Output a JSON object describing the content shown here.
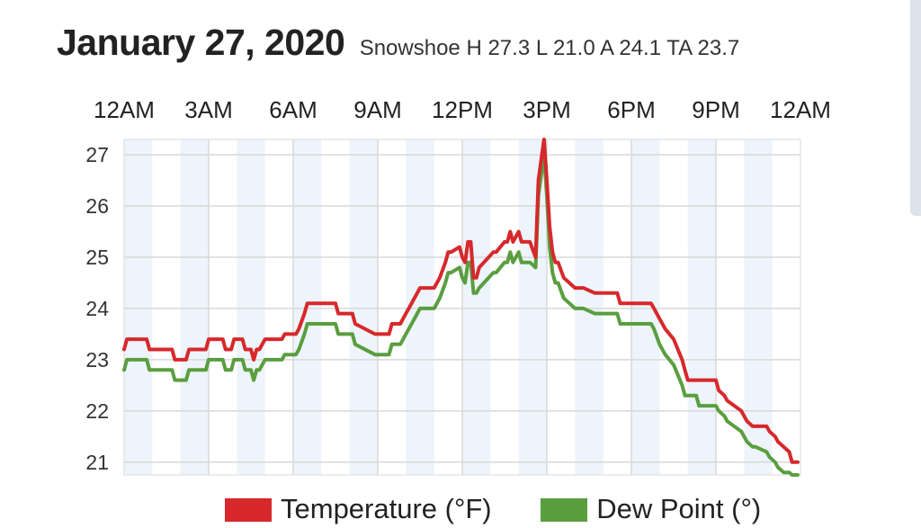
{
  "header": {
    "title": "January 27, 2020",
    "subtitle": "Snowshoe H 27.3 L 21.0 A 24.1 TA 23.7"
  },
  "legend": {
    "temperature_label": "Temperature (°F)",
    "dewpoint_label": "Dew Point (°)"
  },
  "chart_data": {
    "type": "line",
    "title": "January 27, 2020",
    "x_tick_labels": [
      "12AM",
      "3AM",
      "6AM",
      "9AM",
      "12PM",
      "3PM",
      "6PM",
      "9PM",
      "12AM"
    ],
    "y_tick_labels": [
      "27",
      "26",
      "25",
      "24",
      "23",
      "22",
      "21"
    ],
    "x_range_hours": [
      0,
      24
    ],
    "ylim": [
      20.75,
      27.3
    ],
    "grid": true,
    "legend_placement": "bottom",
    "colors": {
      "temperature": "#d7282c",
      "dew_point": "#5a9e3f",
      "band": "#edf4fb",
      "grid": "#d8d8d8"
    },
    "series": [
      {
        "name": "Temperature (°F)",
        "x": [
          0,
          0.1,
          0.4,
          0.8,
          0.9,
          1.7,
          1.8,
          2.2,
          2.3,
          2.9,
          3.0,
          3.5,
          3.6,
          3.8,
          3.9,
          4.2,
          4.3,
          4.5,
          4.6,
          4.7,
          4.8,
          5.0,
          5.1,
          5.6,
          5.7,
          6.1,
          6.2,
          6.4,
          6.5,
          7.5,
          7.6,
          8.1,
          8.2,
          8.9,
          9.0,
          9.4,
          9.5,
          9.8,
          10.0,
          10.1,
          10.4,
          10.5,
          10.8,
          11.0,
          11.2,
          11.4,
          11.5,
          11.6,
          11.9,
          12.0,
          12.1,
          12.2,
          12.3,
          12.4,
          12.5,
          12.6,
          13.1,
          13.2,
          13.5,
          13.6,
          13.7,
          13.8,
          14.0,
          14.1,
          14.4,
          14.6,
          14.7,
          14.8,
          14.9,
          15.0,
          15.1,
          15.2,
          15.3,
          15.4,
          15.6,
          15.8,
          16.0,
          16.1,
          16.3,
          16.7,
          16.8,
          17.5,
          17.6,
          18.7,
          18.8,
          19.0,
          19.2,
          19.5,
          19.8,
          19.9,
          20.0,
          20.1,
          20.2,
          20.3,
          20.4,
          20.5,
          20.6,
          21.0,
          21.1,
          21.3,
          21.4,
          21.9,
          22.0,
          22.1,
          22.3,
          22.4,
          22.8,
          22.9,
          23.1,
          23.2,
          23.4,
          23.6,
          23.7,
          23.9
        ],
        "values": [
          23.2,
          23.4,
          23.4,
          23.4,
          23.2,
          23.2,
          23.0,
          23.0,
          23.2,
          23.2,
          23.4,
          23.4,
          23.2,
          23.2,
          23.4,
          23.4,
          23.2,
          23.2,
          23.0,
          23.2,
          23.2,
          23.4,
          23.4,
          23.4,
          23.5,
          23.5,
          23.6,
          23.9,
          24.1,
          24.1,
          23.9,
          23.9,
          23.7,
          23.5,
          23.5,
          23.5,
          23.7,
          23.7,
          23.9,
          24.0,
          24.3,
          24.4,
          24.4,
          24.4,
          24.6,
          24.9,
          25.1,
          25.1,
          25.2,
          25.0,
          24.9,
          25.3,
          25.3,
          24.6,
          24.6,
          24.8,
          25.1,
          25.1,
          25.3,
          25.3,
          25.5,
          25.3,
          25.5,
          25.3,
          25.3,
          25.0,
          26.5,
          26.9,
          27.3,
          26.5,
          25.6,
          25.1,
          24.9,
          24.9,
          24.6,
          24.5,
          24.4,
          24.4,
          24.4,
          24.3,
          24.3,
          24.3,
          24.1,
          24.1,
          24.0,
          23.8,
          23.6,
          23.4,
          23.0,
          22.8,
          22.6,
          22.6,
          22.6,
          22.6,
          22.6,
          22.6,
          22.6,
          22.6,
          22.4,
          22.3,
          22.2,
          22.0,
          21.9,
          21.8,
          21.7,
          21.7,
          21.7,
          21.6,
          21.5,
          21.4,
          21.3,
          21.2,
          21.0,
          21.0
        ]
      },
      {
        "name": "Dew Point (°)",
        "x": [
          0,
          0.1,
          0.4,
          0.8,
          0.9,
          1.7,
          1.8,
          2.2,
          2.3,
          2.9,
          3.0,
          3.5,
          3.6,
          3.8,
          3.9,
          4.2,
          4.3,
          4.5,
          4.6,
          4.7,
          4.8,
          5.0,
          5.1,
          5.6,
          5.7,
          6.1,
          6.2,
          6.4,
          6.5,
          7.5,
          7.6,
          8.1,
          8.2,
          8.9,
          9.0,
          9.4,
          9.5,
          9.8,
          10.0,
          10.1,
          10.4,
          10.5,
          10.8,
          11.0,
          11.2,
          11.4,
          11.5,
          11.6,
          11.9,
          12.0,
          12.1,
          12.2,
          12.3,
          12.4,
          12.5,
          12.6,
          13.1,
          13.2,
          13.5,
          13.6,
          13.7,
          13.8,
          14.0,
          14.1,
          14.4,
          14.6,
          14.7,
          14.8,
          14.9,
          15.0,
          15.1,
          15.2,
          15.3,
          15.4,
          15.6,
          15.8,
          16.0,
          16.1,
          16.3,
          16.7,
          16.8,
          17.5,
          17.6,
          18.7,
          18.8,
          19.0,
          19.2,
          19.5,
          19.8,
          19.9,
          20.0,
          20.1,
          20.2,
          20.3,
          20.4,
          20.5,
          20.6,
          21.0,
          21.1,
          21.3,
          21.4,
          21.9,
          22.0,
          22.1,
          22.3,
          22.4,
          22.8,
          22.9,
          23.1,
          23.2,
          23.4,
          23.6,
          23.7,
          23.9
        ],
        "values": [
          22.8,
          23.0,
          23.0,
          23.0,
          22.8,
          22.8,
          22.6,
          22.6,
          22.8,
          22.8,
          23.0,
          23.0,
          22.8,
          22.8,
          23.0,
          23.0,
          22.8,
          22.8,
          22.6,
          22.8,
          22.8,
          23.0,
          23.0,
          23.0,
          23.1,
          23.1,
          23.2,
          23.5,
          23.7,
          23.7,
          23.5,
          23.5,
          23.3,
          23.1,
          23.1,
          23.1,
          23.3,
          23.3,
          23.5,
          23.6,
          23.9,
          24.0,
          24.0,
          24.0,
          24.2,
          24.5,
          24.7,
          24.7,
          24.8,
          24.6,
          24.5,
          24.9,
          24.9,
          24.3,
          24.3,
          24.4,
          24.7,
          24.7,
          24.9,
          24.9,
          25.1,
          24.9,
          25.1,
          24.9,
          24.9,
          24.8,
          26.2,
          26.6,
          27.0,
          26.2,
          25.2,
          24.7,
          24.5,
          24.5,
          24.2,
          24.1,
          24.0,
          24.0,
          24.0,
          23.9,
          23.9,
          23.9,
          23.7,
          23.7,
          23.6,
          23.3,
          23.1,
          22.9,
          22.5,
          22.3,
          22.3,
          22.3,
          22.3,
          22.3,
          22.1,
          22.1,
          22.1,
          22.1,
          22.0,
          21.9,
          21.8,
          21.6,
          21.5,
          21.4,
          21.3,
          21.3,
          21.2,
          21.1,
          21.0,
          20.9,
          20.8,
          20.8,
          20.75,
          20.75
        ]
      }
    ]
  }
}
